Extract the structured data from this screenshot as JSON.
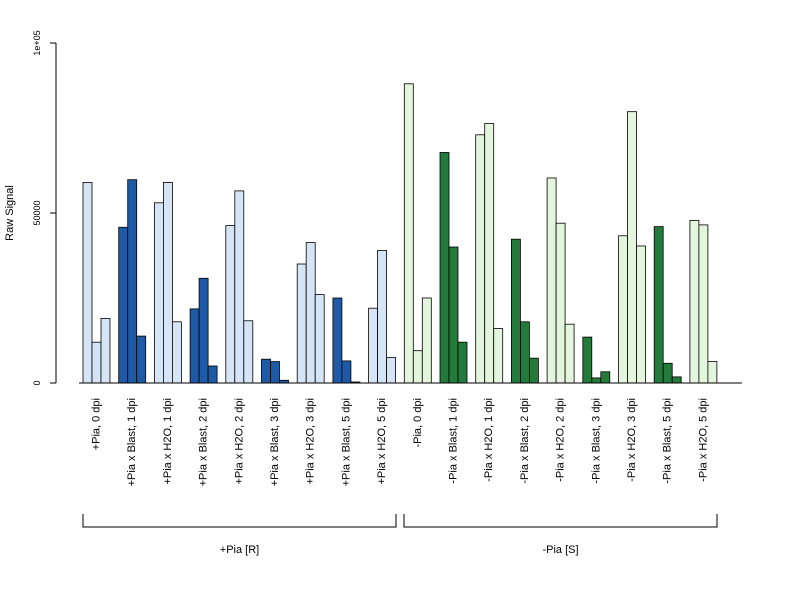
{
  "chart_data": {
    "type": "bar",
    "title": "",
    "ylabel": "Raw Signal",
    "xlabel": "",
    "ylim": [
      0,
      100000
    ],
    "yticks": [
      {
        "value": 0,
        "label": "0"
      },
      {
        "value": 50000,
        "label": "50000"
      },
      {
        "value": 100000,
        "label": "1e+05"
      }
    ],
    "group_colors": {
      "+Pia [R]": {
        "dark": "#1f5aa6",
        "light": "#d6e5f5"
      },
      "-Pia [S]": {
        "dark": "#237a3b",
        "light": "#e3f5dc"
      }
    },
    "categories": [
      {
        "label": "+Pia, 0 dpi",
        "group": "+Pia [R]",
        "shade": "light",
        "values": [
          59000,
          12000,
          19000
        ]
      },
      {
        "label": "+Pia x Blast, 1 dpi",
        "group": "+Pia [R]",
        "shade": "dark",
        "values": [
          45800,
          59800,
          13800
        ]
      },
      {
        "label": "+Pia x H2O, 1 dpi",
        "group": "+Pia [R]",
        "shade": "light",
        "values": [
          53000,
          59000,
          18000
        ]
      },
      {
        "label": "+Pia x Blast, 2 dpi",
        "group": "+Pia [R]",
        "shade": "dark",
        "values": [
          21800,
          30800,
          5000
        ]
      },
      {
        "label": "+Pia x H2O, 2 dpi",
        "group": "+Pia [R]",
        "shade": "light",
        "values": [
          46300,
          56500,
          18300
        ]
      },
      {
        "label": "+Pia x Blast, 3 dpi",
        "group": "+Pia [R]",
        "shade": "dark",
        "values": [
          7000,
          6300,
          800
        ]
      },
      {
        "label": "+Pia x H2O, 3 dpi",
        "group": "+Pia [R]",
        "shade": "light",
        "values": [
          35000,
          41300,
          26000
        ]
      },
      {
        "label": "+Pia x Blast, 5 dpi",
        "group": "+Pia [R]",
        "shade": "dark",
        "values": [
          25000,
          6500,
          300
        ]
      },
      {
        "label": "+Pia x H2O, 5 dpi",
        "group": "+Pia [R]",
        "shade": "light",
        "values": [
          22000,
          39000,
          7500
        ]
      },
      {
        "label": "-Pia, 0 dpi",
        "group": "-Pia [S]",
        "shade": "light",
        "values": [
          88000,
          9500,
          25000
        ]
      },
      {
        "label": "-Pia x Blast, 1 dpi",
        "group": "-Pia [S]",
        "shade": "dark",
        "values": [
          67800,
          40000,
          12000
        ]
      },
      {
        "label": "-Pia x H2O, 1 dpi",
        "group": "-Pia [S]",
        "shade": "light",
        "values": [
          73000,
          76300,
          16000
        ]
      },
      {
        "label": "-Pia x Blast, 2 dpi",
        "group": "-Pia [S]",
        "shade": "dark",
        "values": [
          42300,
          18000,
          7300
        ]
      },
      {
        "label": "-Pia x H2O, 2 dpi",
        "group": "-Pia [S]",
        "shade": "light",
        "values": [
          60300,
          47000,
          17300
        ]
      },
      {
        "label": "-Pia x Blast, 3 dpi",
        "group": "-Pia [S]",
        "shade": "dark",
        "values": [
          13500,
          1500,
          3300
        ]
      },
      {
        "label": "-Pia x H2O, 3 dpi",
        "group": "-Pia [S]",
        "shade": "light",
        "values": [
          43300,
          79800,
          40300
        ]
      },
      {
        "label": "-Pia x Blast, 5 dpi",
        "group": "-Pia [S]",
        "shade": "dark",
        "values": [
          46000,
          5800,
          1800
        ]
      },
      {
        "label": "-Pia x H2O, 5 dpi",
        "group": "-Pia [S]",
        "shade": "light",
        "values": [
          47800,
          46500,
          6300
        ]
      }
    ],
    "groups": [
      {
        "label": "+Pia [R]"
      },
      {
        "label": "-Pia [S]"
      }
    ],
    "grid": false,
    "legend": "none"
  }
}
